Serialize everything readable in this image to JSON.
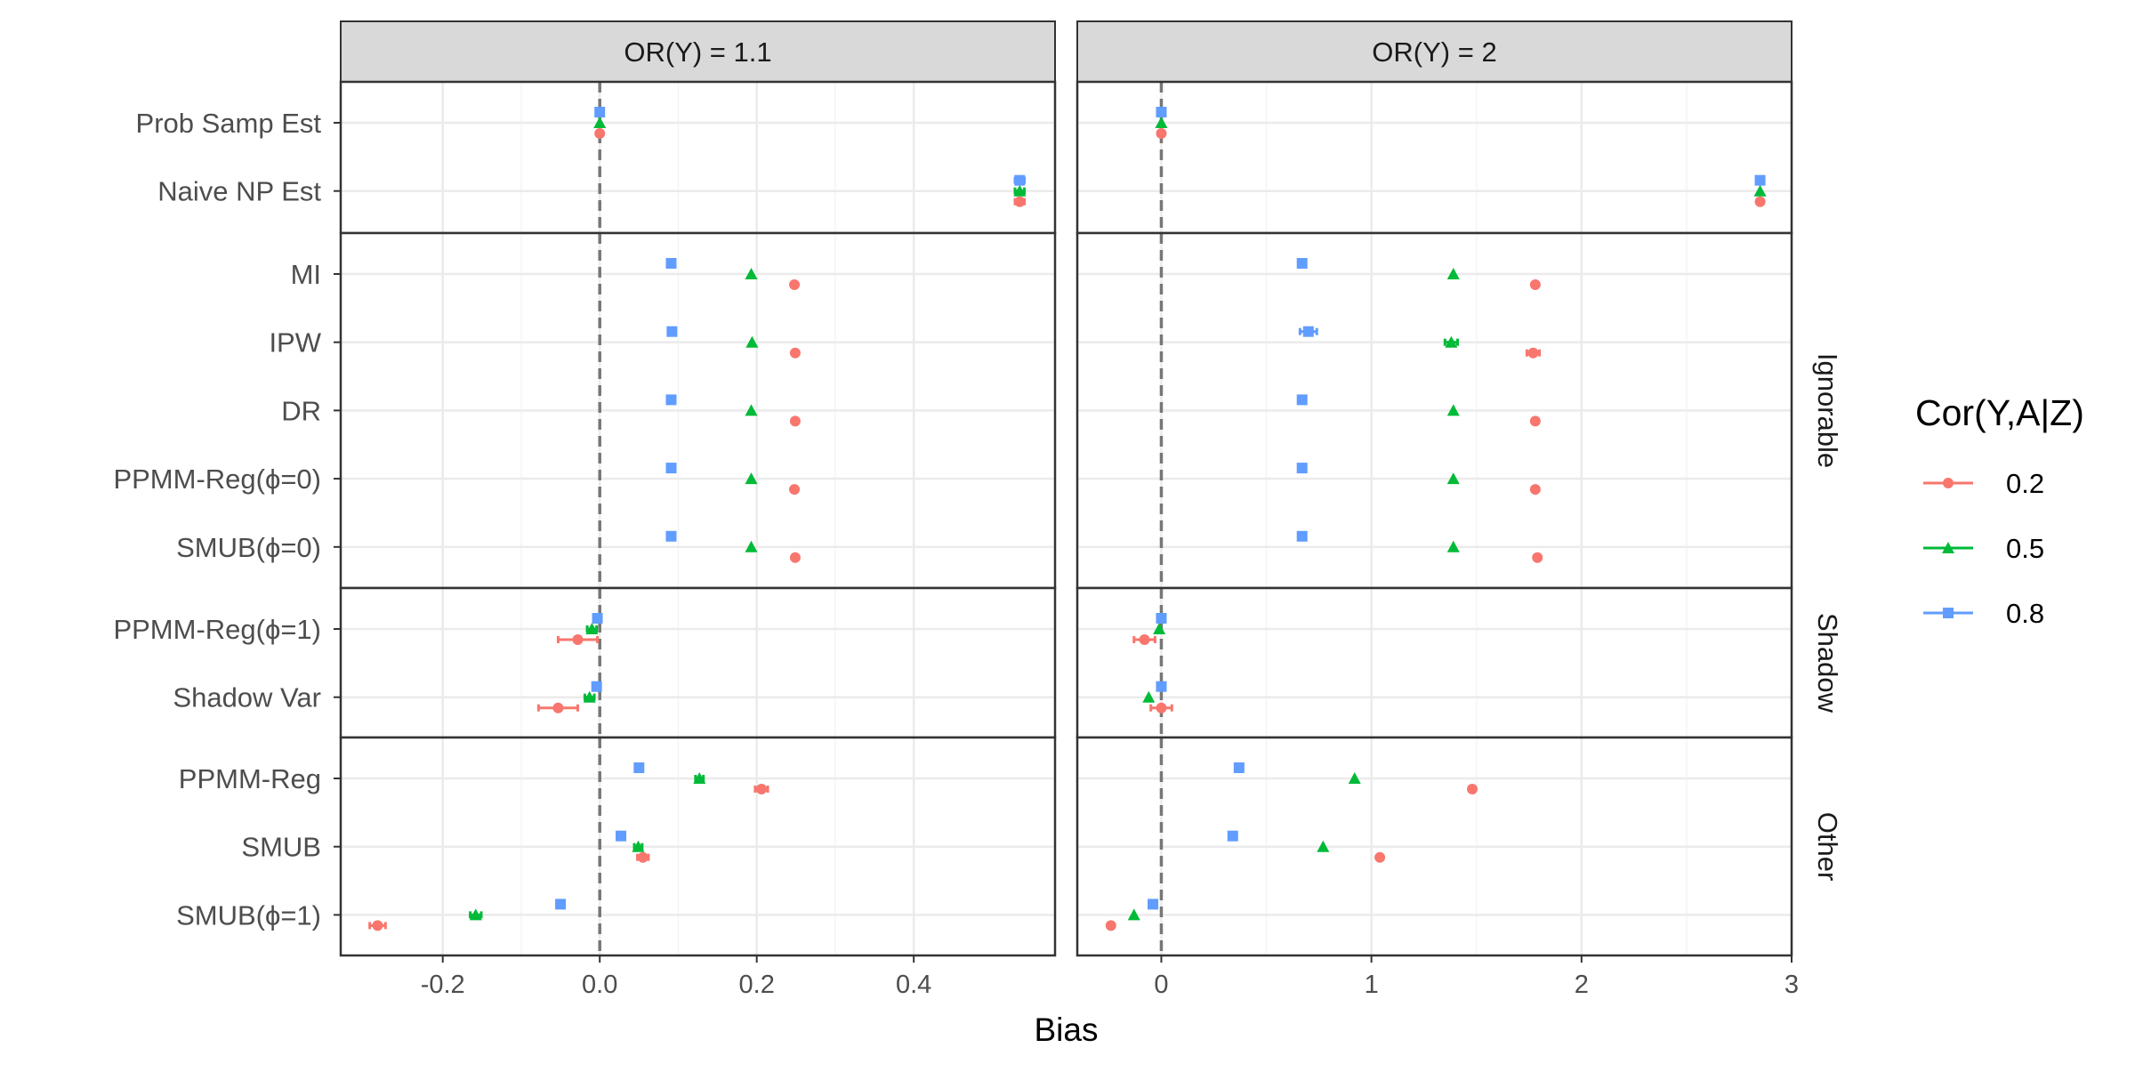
{
  "chart_data": {
    "type": "scatter",
    "title": "",
    "xlabel": "Bias",
    "ylabel": "",
    "legend": {
      "title": "Cor(Y,A|Z)",
      "position": "right",
      "entries": [
        {
          "label": "0.2",
          "color": "#F8766D",
          "shape": "circle"
        },
        {
          "label": "0.5",
          "color": "#00BA38",
          "shape": "triangle"
        },
        {
          "label": "0.8",
          "color": "#619CFF",
          "shape": "square"
        }
      ]
    },
    "grid": true,
    "reference_line": {
      "x": 0,
      "style": "dashed"
    },
    "series_order": [
      "0.2",
      "0.5",
      "0.8"
    ],
    "facet_rows": [
      {
        "label": "",
        "methods": [
          "Prob Samp Est",
          "Naive NP Est"
        ]
      },
      {
        "label": "Ignorable",
        "methods": [
          "MI",
          "IPW",
          "DR",
          "PPMM-Reg(ϕ=0)",
          "SMUB(ϕ=0)"
        ]
      },
      {
        "label": "Shadow",
        "methods": [
          "PPMM-Reg(ϕ=1)",
          "Shadow Var"
        ]
      },
      {
        "label": "Other",
        "methods": [
          "PPMM-Reg",
          "SMUB",
          "SMUB(ϕ=1)"
        ]
      }
    ],
    "panels": [
      {
        "label": "OR(Y) = 1.1",
        "xlim": [
          -0.33,
          0.58
        ],
        "xticks": [
          -0.2,
          0.0,
          0.2,
          0.4
        ],
        "xtick_labels": [
          "-0.2",
          "0.0",
          "0.2",
          "0.4"
        ],
        "points": {
          "Prob Samp Est": [
            {
              "x": 0.0,
              "err": 0
            },
            {
              "x": 0.0,
              "err": 0
            },
            {
              "x": 0.0,
              "err": 0
            }
          ],
          "Naive NP Est": [
            {
              "x": 0.535,
              "err": 0.006
            },
            {
              "x": 0.535,
              "err": 0.006
            },
            {
              "x": 0.535,
              "err": 0.006
            }
          ],
          "MI": [
            {
              "x": 0.248,
              "err": 0
            },
            {
              "x": 0.193,
              "err": 0
            },
            {
              "x": 0.091,
              "err": 0
            }
          ],
          "IPW": [
            {
              "x": 0.249,
              "err": 0
            },
            {
              "x": 0.194,
              "err": 0
            },
            {
              "x": 0.092,
              "err": 0
            }
          ],
          "DR": [
            {
              "x": 0.249,
              "err": 0
            },
            {
              "x": 0.193,
              "err": 0
            },
            {
              "x": 0.091,
              "err": 0
            }
          ],
          "PPMM-Reg(ϕ=0)": [
            {
              "x": 0.248,
              "err": 0
            },
            {
              "x": 0.193,
              "err": 0
            },
            {
              "x": 0.091,
              "err": 0
            }
          ],
          "SMUB(ϕ=0)": [
            {
              "x": 0.249,
              "err": 0
            },
            {
              "x": 0.193,
              "err": 0
            },
            {
              "x": 0.091,
              "err": 0
            }
          ],
          "PPMM-Reg(ϕ=1)": [
            {
              "x": -0.028,
              "err": 0.025
            },
            {
              "x": -0.01,
              "err": 0.006
            },
            {
              "x": -0.003,
              "err": 0
            }
          ],
          "Shadow Var": [
            {
              "x": -0.053,
              "err": 0.025
            },
            {
              "x": -0.013,
              "err": 0.006
            },
            {
              "x": -0.004,
              "err": 0
            }
          ],
          "PPMM-Reg": [
            {
              "x": 0.206,
              "err": 0.008
            },
            {
              "x": 0.127,
              "err": 0.005
            },
            {
              "x": 0.05,
              "err": 0
            }
          ],
          "SMUB": [
            {
              "x": 0.055,
              "err": 0.007
            },
            {
              "x": 0.049,
              "err": 0.005
            },
            {
              "x": 0.027,
              "err": 0
            }
          ],
          "SMUB(ϕ=1)": [
            {
              "x": -0.283,
              "err": 0.01
            },
            {
              "x": -0.158,
              "err": 0.007
            },
            {
              "x": -0.05,
              "err": 0
            }
          ]
        }
      },
      {
        "label": "OR(Y) = 2",
        "xlim": [
          -0.4,
          3.0
        ],
        "xticks": [
          0,
          1,
          2,
          3
        ],
        "xtick_labels": [
          "0",
          "1",
          "2",
          "3"
        ],
        "points": {
          "Prob Samp Est": [
            {
              "x": 0.0,
              "err": 0
            },
            {
              "x": 0.0,
              "err": 0
            },
            {
              "x": 0.0,
              "err": 0
            }
          ],
          "Naive NP Est": [
            {
              "x": 2.85,
              "err": 0
            },
            {
              "x": 2.85,
              "err": 0
            },
            {
              "x": 2.85,
              "err": 0
            }
          ],
          "MI": [
            {
              "x": 1.78,
              "err": 0
            },
            {
              "x": 1.39,
              "err": 0
            },
            {
              "x": 0.67,
              "err": 0
            }
          ],
          "IPW": [
            {
              "x": 1.77,
              "err": 0.03
            },
            {
              "x": 1.38,
              "err": 0.03
            },
            {
              "x": 0.7,
              "err": 0.04
            }
          ],
          "DR": [
            {
              "x": 1.78,
              "err": 0
            },
            {
              "x": 1.39,
              "err": 0
            },
            {
              "x": 0.67,
              "err": 0
            }
          ],
          "PPMM-Reg(ϕ=0)": [
            {
              "x": 1.78,
              "err": 0
            },
            {
              "x": 1.39,
              "err": 0
            },
            {
              "x": 0.67,
              "err": 0
            }
          ],
          "SMUB(ϕ=0)": [
            {
              "x": 1.79,
              "err": 0
            },
            {
              "x": 1.39,
              "err": 0
            },
            {
              "x": 0.67,
              "err": 0
            }
          ],
          "PPMM-Reg(ϕ=1)": [
            {
              "x": -0.08,
              "err": 0.05
            },
            {
              "x": -0.01,
              "err": 0
            },
            {
              "x": 0.0,
              "err": 0
            }
          ],
          "Shadow Var": [
            {
              "x": 0.0,
              "err": 0.05
            },
            {
              "x": -0.06,
              "err": 0
            },
            {
              "x": 0.0,
              "err": 0
            }
          ],
          "PPMM-Reg": [
            {
              "x": 1.48,
              "err": 0
            },
            {
              "x": 0.92,
              "err": 0
            },
            {
              "x": 0.37,
              "err": 0
            }
          ],
          "SMUB": [
            {
              "x": 1.04,
              "err": 0
            },
            {
              "x": 0.77,
              "err": 0
            },
            {
              "x": 0.34,
              "err": 0
            }
          ],
          "SMUB(ϕ=1)": [
            {
              "x": -0.24,
              "err": 0
            },
            {
              "x": -0.13,
              "err": 0
            },
            {
              "x": -0.04,
              "err": 0
            }
          ]
        }
      }
    ]
  }
}
